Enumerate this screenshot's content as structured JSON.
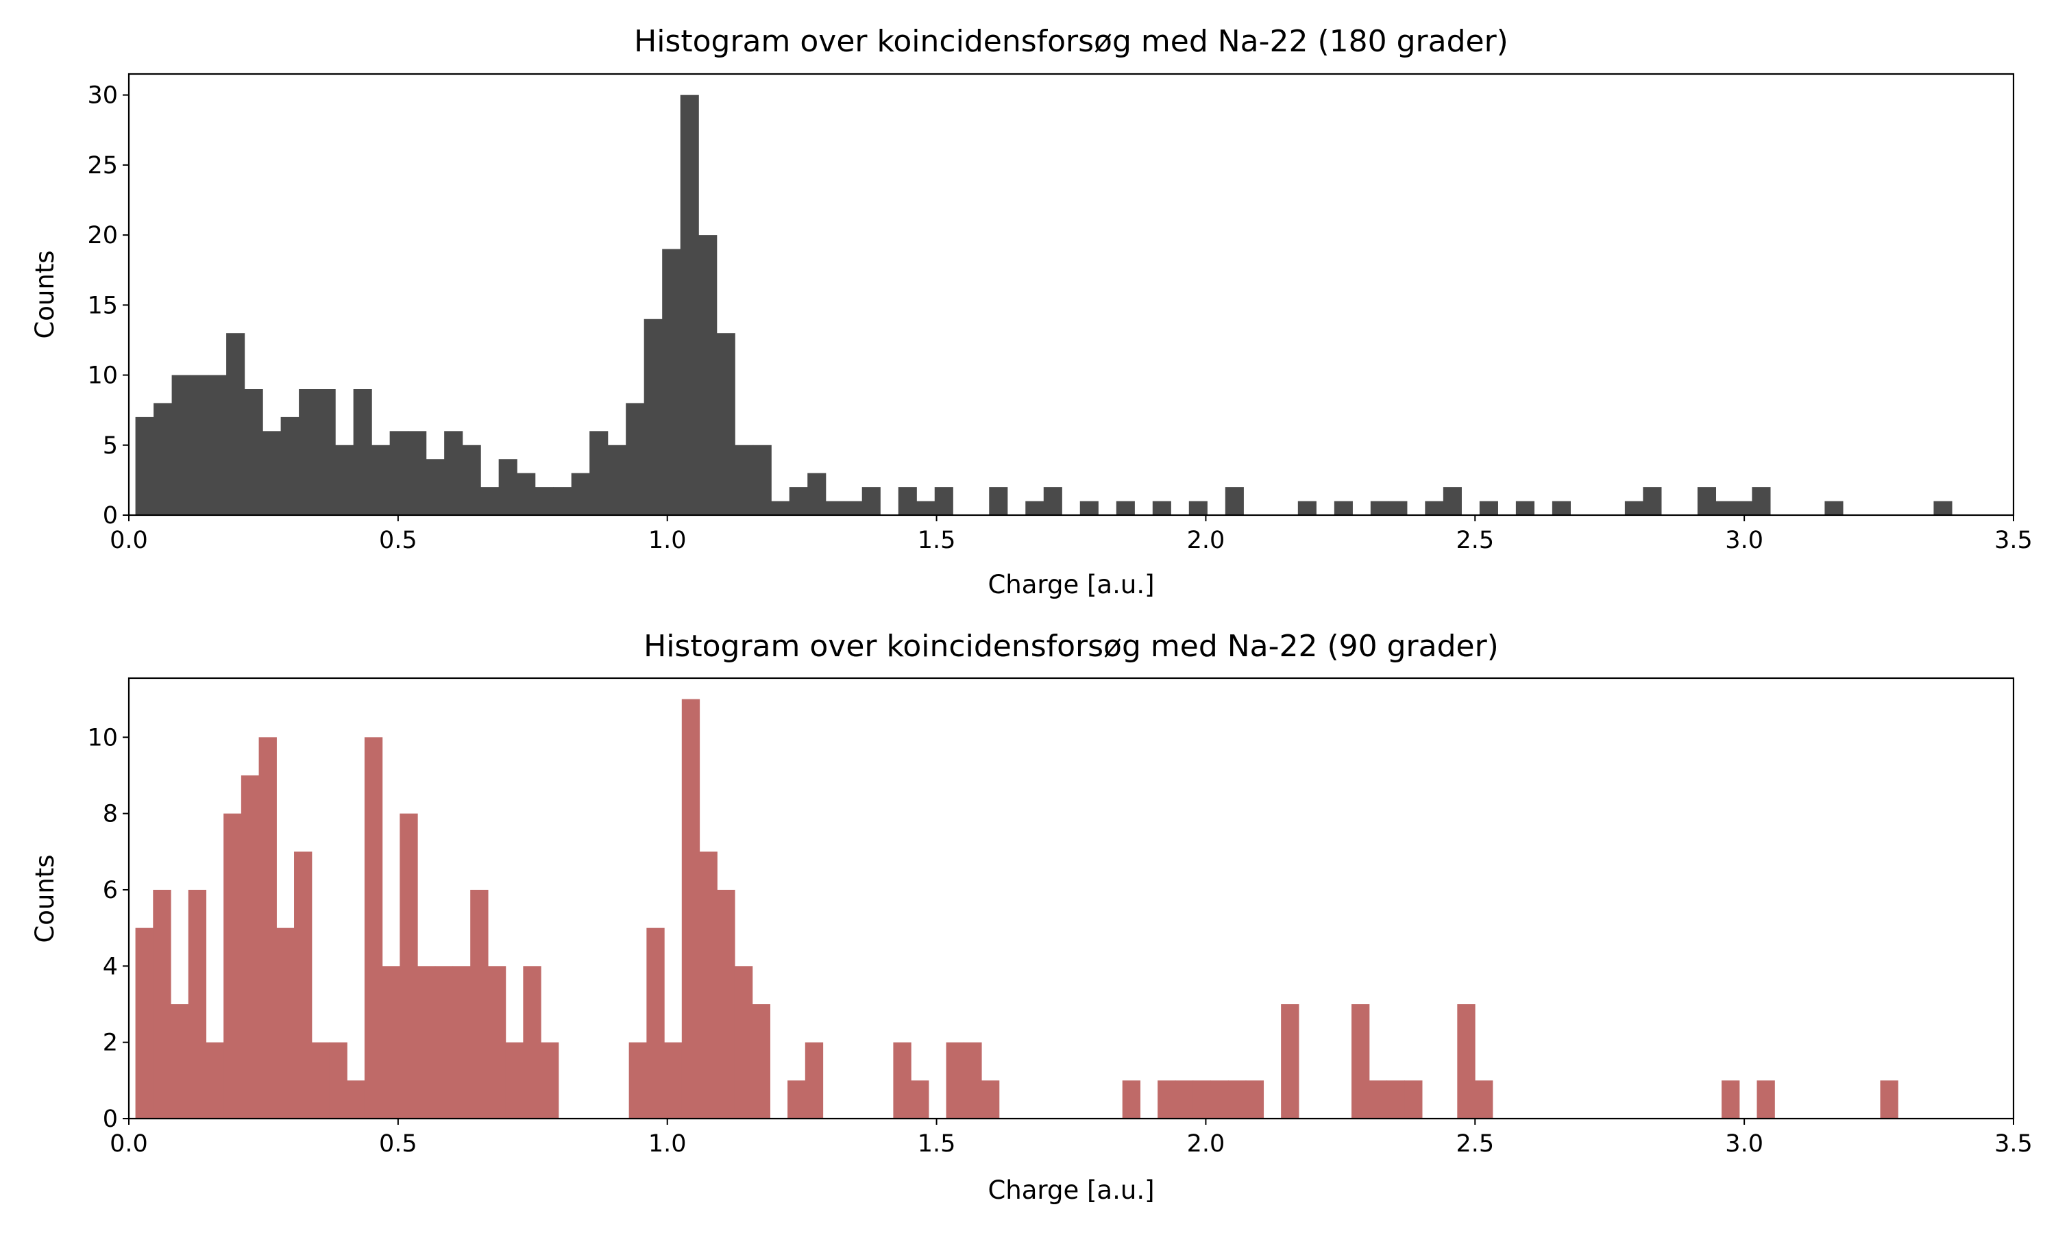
{
  "chart_data": [
    {
      "type": "bar",
      "title": "Histogram over koincidensforsøg med Na-22 (180 grader)",
      "xlabel": "Charge [a.u.]",
      "ylabel": "Counts",
      "color": "#4a4a4a",
      "xlim": [
        0.0,
        3.5
      ],
      "ylim": [
        0,
        31.5
      ],
      "xticks": [
        "0.0",
        "0.5",
        "1.0",
        "1.5",
        "2.0",
        "2.5",
        "3.0",
        "3.5"
      ],
      "yticks": [
        "0",
        "5",
        "10",
        "15",
        "20",
        "25",
        "30"
      ],
      "bin_edges_range": [
        0.0122,
        3.3854
      ],
      "bin_count": 100,
      "values": [
        7,
        8,
        10,
        10,
        10,
        13,
        9,
        6,
        7,
        9,
        9,
        5,
        9,
        5,
        6,
        6,
        4,
        6,
        5,
        2,
        4,
        3,
        2,
        2,
        3,
        6,
        5,
        8,
        14,
        19,
        30,
        20,
        13,
        5,
        5,
        1,
        2,
        3,
        1,
        1,
        2,
        0,
        2,
        1,
        2,
        0,
        0,
        2,
        0,
        1,
        2,
        0,
        1,
        0,
        1,
        0,
        1,
        0,
        1,
        0,
        2,
        0,
        0,
        0,
        1,
        0,
        1,
        0,
        1,
        1,
        0,
        1,
        2,
        0,
        1,
        0,
        1,
        0,
        1,
        0,
        0,
        0,
        1,
        2,
        0,
        0,
        2,
        1,
        1,
        2,
        0,
        0,
        0,
        1,
        0,
        0,
        0,
        0,
        0,
        1
      ]
    },
    {
      "type": "bar",
      "title": "Histogram over koincidensforsøg med Na-22 (90 grader)",
      "xlabel": "Charge [a.u.]",
      "ylabel": "Counts",
      "color": "#bf6a68",
      "xlim": [
        0.0,
        3.5
      ],
      "ylim": [
        0,
        11.55
      ],
      "xticks": [
        "0.0",
        "0.5",
        "1.0",
        "1.5",
        "2.0",
        "2.5",
        "3.0",
        "3.5"
      ],
      "yticks": [
        "0",
        "2",
        "4",
        "6",
        "8",
        "10"
      ],
      "bin_edges_range": [
        0.0122,
        3.2852
      ],
      "bin_count": 100,
      "values": [
        5,
        6,
        3,
        6,
        2,
        8,
        9,
        10,
        5,
        7,
        2,
        2,
        1,
        10,
        4,
        8,
        4,
        4,
        4,
        6,
        4,
        2,
        4,
        2,
        0,
        0,
        0,
        0,
        2,
        5,
        2,
        11,
        7,
        6,
        4,
        3,
        0,
        1,
        2,
        0,
        0,
        0,
        0,
        2,
        1,
        0,
        2,
        2,
        1,
        0,
        0,
        0,
        0,
        0,
        0,
        0,
        1,
        0,
        1,
        1,
        1,
        1,
        1,
        1,
        0,
        3,
        0,
        0,
        0,
        3,
        1,
        1,
        1,
        0,
        0,
        3,
        1,
        0,
        0,
        0,
        0,
        0,
        0,
        0,
        0,
        0,
        0,
        0,
        0,
        0,
        1,
        0,
        1,
        0,
        0,
        0,
        0,
        0,
        0,
        1
      ]
    }
  ]
}
